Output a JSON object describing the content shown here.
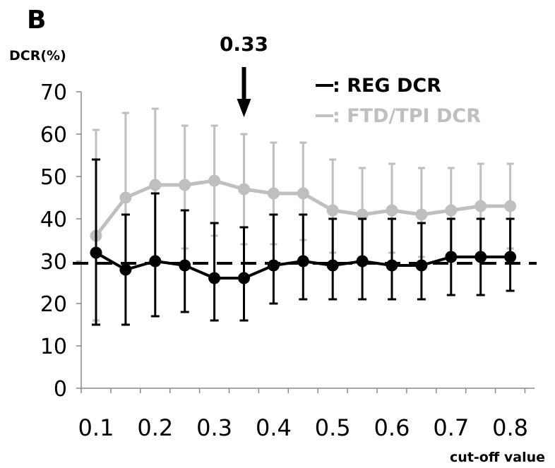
{
  "chart_data": {
    "type": "line",
    "panel_label": "B",
    "ylabel": "DCR(%)",
    "xlabel": "cut-off value",
    "ylim": [
      0,
      70
    ],
    "yticks": [
      "0",
      "10",
      "20",
      "30",
      "40",
      "50",
      "60",
      "70"
    ],
    "xtick_labels": [
      "0.1",
      "0.2",
      "0.3",
      "0.4",
      "0.5",
      "0.6",
      "0.7",
      "0.8"
    ],
    "x": [
      0.1,
      0.15,
      0.2,
      0.25,
      0.3,
      0.35,
      0.4,
      0.45,
      0.5,
      0.55,
      0.6,
      0.65,
      0.7,
      0.75,
      0.8
    ],
    "series": [
      {
        "name": ": REG DCR",
        "color": "#000000",
        "values": [
          32,
          28,
          30,
          29,
          26,
          26,
          29,
          30,
          29,
          30,
          29,
          29,
          31,
          31,
          31
        ],
        "err_upper": [
          54,
          41,
          46,
          42,
          39,
          38,
          41,
          41,
          40,
          40,
          40,
          39,
          40,
          40,
          40
        ],
        "err_lower": [
          15,
          15,
          17,
          18,
          16,
          16,
          20,
          21,
          21,
          21,
          21,
          21,
          22,
          22,
          23
        ]
      },
      {
        "name": ": FTD/TPI DCR",
        "color": "#bfbfbf",
        "values": [
          36,
          45,
          48,
          48,
          49,
          47,
          46,
          46,
          42,
          41,
          42,
          41,
          42,
          43,
          43
        ],
        "err_upper": [
          61,
          65,
          66,
          62,
          62,
          60,
          58,
          58,
          54,
          52,
          53,
          52,
          52,
          53,
          53
        ],
        "err_lower": [
          16,
          28,
          30,
          33,
          36,
          34,
          34,
          35,
          32,
          31,
          32,
          31,
          32,
          32,
          33
        ]
      }
    ],
    "reference_line": {
      "y": 29.5,
      "style": "dashed",
      "color": "#000000"
    },
    "annotation": {
      "text": "0.33",
      "x": 0.35,
      "arrow": "down"
    },
    "legend_placement": "top-right",
    "grid": false
  }
}
